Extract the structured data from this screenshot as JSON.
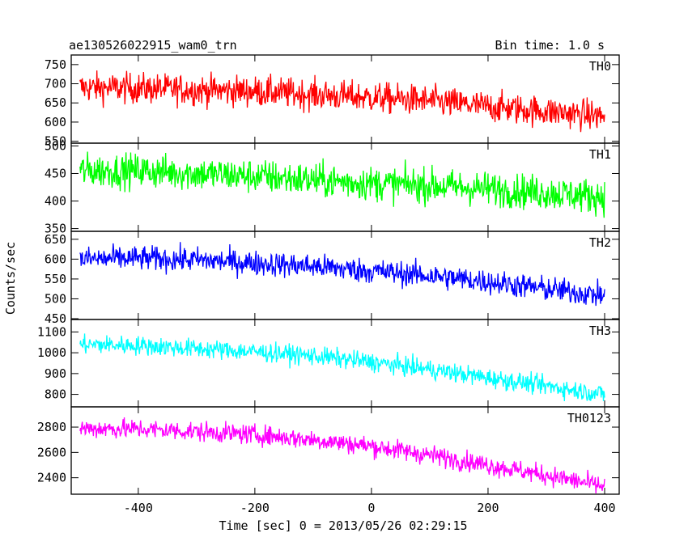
{
  "chart_data": {
    "type": "line",
    "title": "ae130526022915_wam0_trn",
    "subtitle": "Bin time: 1.0 s",
    "xlabel": "Time [sec] 0 = 2013/05/26 02:29:15",
    "ylabel": "Counts/sec",
    "xlim": [
      -515,
      425
    ],
    "xticks": [
      -400,
      -200,
      0,
      200,
      400
    ],
    "grid": false,
    "series": [
      {
        "name": "TH0",
        "color": "#ff0000",
        "ylim": [
          545,
          775
        ],
        "yticks": [
          550,
          600,
          650,
          700,
          750
        ],
        "x": [
          -500,
          -400,
          -300,
          -200,
          -100,
          0,
          100,
          200,
          300,
          400
        ],
        "values": [
          690,
          688,
          684,
          680,
          672,
          664,
          655,
          640,
          628,
          615
        ],
        "noise": 28
      },
      {
        "name": "TH1",
        "color": "#00ff00",
        "ylim": [
          345,
          505
        ],
        "yticks": [
          350,
          400,
          450,
          500
        ],
        "x": [
          -500,
          -400,
          -300,
          -200,
          -100,
          0,
          100,
          200,
          300,
          400
        ],
        "values": [
          455,
          455,
          450,
          445,
          438,
          432,
          428,
          422,
          415,
          408
        ],
        "noise": 22
      },
      {
        "name": "TH2",
        "color": "#0000ff",
        "ylim": [
          448,
          670
        ],
        "yticks": [
          450,
          500,
          550,
          600,
          650
        ],
        "x": [
          -500,
          -400,
          -300,
          -200,
          -100,
          0,
          100,
          200,
          300,
          400
        ],
        "values": [
          600,
          602,
          598,
          590,
          582,
          570,
          558,
          543,
          525,
          508
        ],
        "noise": 22
      },
      {
        "name": "TH3",
        "color": "#00ffff",
        "ylim": [
          740,
          1160
        ],
        "yticks": [
          800,
          900,
          1000,
          1100
        ],
        "x": [
          -500,
          -400,
          -300,
          -200,
          -100,
          0,
          100,
          200,
          300,
          400
        ],
        "values": [
          1040,
          1035,
          1020,
          1005,
          985,
          955,
          920,
          880,
          840,
          800
        ],
        "noise": 32
      },
      {
        "name": "TH0123",
        "color": "#ff00ff",
        "ylim": [
          2270,
          2960
        ],
        "yticks": [
          2400,
          2600,
          2800
        ],
        "x": [
          -500,
          -400,
          -300,
          -200,
          -100,
          0,
          100,
          200,
          300,
          400
        ],
        "values": [
          2790,
          2785,
          2765,
          2740,
          2700,
          2650,
          2580,
          2500,
          2420,
          2330
        ],
        "noise": 55
      }
    ]
  }
}
